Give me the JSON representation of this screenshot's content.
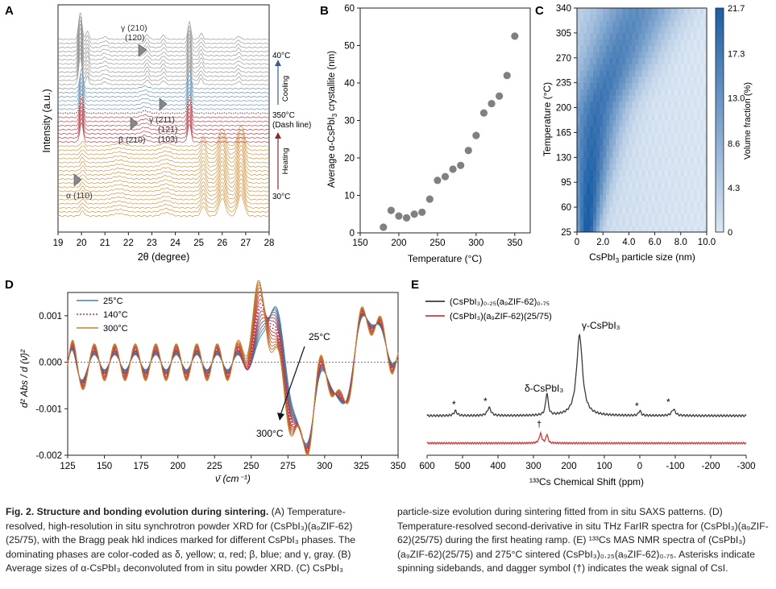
{
  "panels": {
    "A": {
      "letter": "A",
      "ylabel": "Intensity (a.u.)",
      "xlabel": "2θ (degree)",
      "xticks": [
        "19",
        "20",
        "21",
        "22",
        "23",
        "24",
        "25",
        "26",
        "27",
        "28"
      ],
      "annotations": {
        "gamma_210_120_a": "γ (210)",
        "gamma_210_120_b": "(120)",
        "gamma_211_a": "γ (211)",
        "gamma_211_b": "(121)",
        "gamma_211_c": "(103)",
        "beta_210": "β (210)",
        "alpha_110": "α (110)",
        "t40": "40°C",
        "t350": "350°C",
        "dash": "(Dash line)",
        "t30": "30°C",
        "cooling": "Cooling",
        "heating": "Heating"
      }
    },
    "B": {
      "letter": "B",
      "ylabel_a": "Average α-CsPbI",
      "ylabel_sub": "3",
      "ylabel_b": " crystallite (nm)",
      "xlabel": "Temperature (°C)"
    },
    "C": {
      "letter": "C",
      "ylabel": "Temperature (°C)",
      "xlabel_a": "CsPbI",
      "xlabel_sub": "3",
      "xlabel_b": " particle size (nm)",
      "cbar_label": "Volume fraction (%)",
      "cbar_ticks": [
        "21.7",
        "17.3",
        "13.0",
        "8.6",
        "4.3",
        "0"
      ],
      "colors": {
        "low": "#dde8f4",
        "high": "#1d5fa6"
      }
    },
    "D": {
      "letter": "D",
      "ylabel": "d² Abs / d (ν̄)²",
      "xlabel": "ν̄ (cm⁻¹)",
      "legend": [
        "25°C",
        "140°C",
        "300°C"
      ],
      "arrow_top": "25°C",
      "arrow_bottom": "300°C"
    },
    "E": {
      "letter": "E",
      "legend_1": "(CsPbI₃)₀.₂₅(a₉ZIF-62)₀.₇₅",
      "legend_2": "(CsPbI₃)(a₉ZIF-62)(25/75)",
      "gamma_label": "γ-CsPbI₃",
      "delta_label": "δ-CsPbI₃",
      "star": "*",
      "dagger": "†",
      "xlabel": "¹³³Cs Chemical Shift (ppm)",
      "xticks": [
        "600",
        "500",
        "400",
        "300",
        "200",
        "100",
        "0",
        "-100",
        "-200",
        "-300"
      ]
    }
  },
  "chart_data": [
    {
      "panel": "A",
      "type": "line",
      "title": "",
      "xlabel": "2θ (degree)",
      "ylabel": "Intensity (a.u.)",
      "xlim": [
        19,
        28
      ],
      "phase_colors": {
        "delta": "#d08a2e",
        "alpha": "#b0303a",
        "beta": "#5b8bb0",
        "gamma": "#8c8c8c"
      },
      "peaks_2theta": {
        "delta_main": [
          20.0,
          25.2,
          26.5
        ],
        "alpha_110": 20.0,
        "beta_210": 22.7,
        "gamma_210": 22.8,
        "gamma_211": 23.5,
        "gamma_main": [
          19.9,
          24.6
        ]
      }
    },
    {
      "panel": "B",
      "type": "scatter",
      "title": "",
      "xlabel": "Temperature (°C)",
      "ylabel": "Average α-CsPbI3 crystallite (nm)",
      "xlim": [
        150,
        370
      ],
      "ylim": [
        0,
        60
      ],
      "xticks": [
        150,
        200,
        250,
        300,
        350
      ],
      "yticks": [
        0,
        10,
        20,
        30,
        40,
        50,
        60
      ],
      "x": [
        180,
        190,
        200,
        210,
        220,
        230,
        240,
        250,
        260,
        270,
        280,
        290,
        300,
        310,
        320,
        330,
        340,
        350
      ],
      "y": [
        1.5,
        6.0,
        4.5,
        4.0,
        5.0,
        5.5,
        9.0,
        14.0,
        15.0,
        17.0,
        18.0,
        22.0,
        26.0,
        32.0,
        34.5,
        36.5,
        42.0,
        52.5
      ],
      "marker_color": "#808080"
    },
    {
      "panel": "C",
      "type": "heatmap",
      "title": "",
      "xlabel": "CsPbI3 particle size (nm)",
      "ylabel": "Temperature (°C)",
      "xlim": [
        0,
        10.0
      ],
      "ylim": [
        25,
        340
      ],
      "xticks": [
        "0",
        "2.0",
        "4.0",
        "6.0",
        "8.0",
        "10.0"
      ],
      "yticks": [
        "25",
        "60",
        "95",
        "130",
        "165",
        "200",
        "235",
        "270",
        "305",
        "340"
      ],
      "zlim": [
        0,
        21.7
      ],
      "description_ridge": [
        [
          25,
          0.8
        ],
        [
          95,
          1.0
        ],
        [
          165,
          1.3
        ],
        [
          200,
          1.6
        ],
        [
          235,
          2.3
        ],
        [
          270,
          3.1
        ],
        [
          305,
          3.9
        ],
        [
          340,
          4.7
        ]
      ]
    },
    {
      "panel": "D",
      "type": "line",
      "title": "",
      "xlabel": "ν̄ (cm⁻¹)",
      "ylabel": "d² Abs / d(ν̄)²",
      "xlim": [
        125,
        350
      ],
      "ylim": [
        -0.002,
        0.0015
      ],
      "xticks": [
        125,
        150,
        175,
        200,
        225,
        250,
        275,
        300,
        325,
        350
      ],
      "yticks": [
        "0.001",
        "0.000",
        "-0.001",
        "-0.002"
      ],
      "series": [
        {
          "name": "25°C",
          "color": "#3a86a8"
        },
        {
          "name": "140°C",
          "color": "#c2304a",
          "dash": "dotted"
        },
        {
          "name": "300°C",
          "color": "#c0842e"
        }
      ]
    },
    {
      "panel": "E",
      "type": "line",
      "title": "",
      "xlabel": "133Cs Chemical Shift (ppm)",
      "xlim": [
        600,
        -300
      ],
      "xticks": [
        600,
        500,
        400,
        300,
        200,
        100,
        0,
        -100,
        -200,
        -300
      ],
      "series": [
        {
          "name": "(CsPbI3)0.25(agZIF-62)0.75",
          "color": "#3a3a3a",
          "peaks_ppm": [
            170,
            260,
            425,
            520,
            0,
            -95
          ]
        },
        {
          "name": "(CsPbI3)(agZIF-62)(25/75)",
          "color": "#d0393a",
          "peaks_ppm": [
            280,
            262
          ]
        }
      ]
    }
  ],
  "caption": {
    "left_bold": "Fig. 2. Structure and bonding evolution during sintering.",
    "left_rest": " (A) Temperature-resolved, high-resolution in situ synchrotron powder XRD for (CsPbI₃)(a₉ZIF-62)(25/75), with the Bragg peak hkl indices marked for different CsPbI₃ phases. The dominating phases are color-coded as δ, yellow; α, red; β, blue; and γ, gray. (B) Average sizes of α-CsPbI₃ deconvoluted from in situ powder XRD. (C) CsPbI₃",
    "right": "particle-size evolution during sintering fitted from in situ SAXS patterns. (D) Temperature-resolved second-derivative in situ THz FarIR spectra for (CsPbI₃)(a₉ZIF-62)(25/75) during the first heating ramp. (E) ¹³³Cs MAS NMR spectra of (CsPbI₃)(a₉ZIF-62)(25/75) and 275°C sintered (CsPbI₃)₀.₂₅(a₉ZIF-62)₀.₇₅. Asterisks indicate spinning sidebands, and dagger symbol (†) indicates the weak signal of CsI."
  }
}
